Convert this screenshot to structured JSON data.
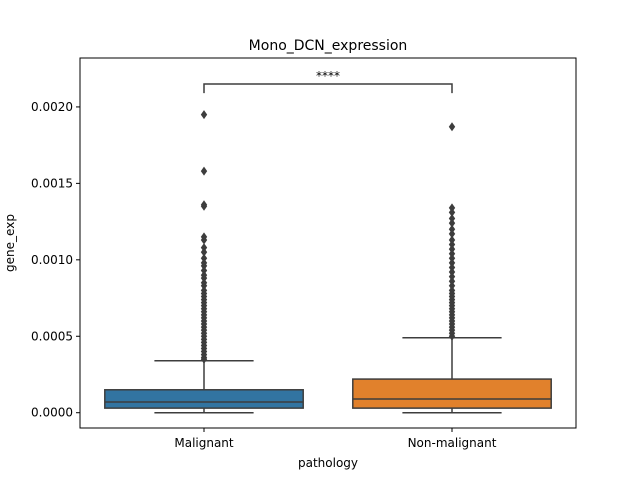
{
  "chart_data": {
    "type": "box",
    "title": "Mono_DCN_expression",
    "xlabel": "pathology",
    "ylabel": "gene_exp",
    "ylim": [
      -0.0001,
      0.00232
    ],
    "yticks": [
      0.0,
      0.0005,
      0.001,
      0.0015,
      0.002
    ],
    "ytick_labels": [
      "0.0000",
      "0.0005",
      "0.0010",
      "0.0015",
      "0.0020"
    ],
    "grid": false,
    "categories": [
      "Malignant",
      "Non-malignant"
    ],
    "boxes": [
      {
        "category": "Malignant",
        "color": "#3274a1",
        "whisker_low": 0.0,
        "q1": 3e-05,
        "median": 7e-05,
        "q3": 0.00015,
        "whisker_high": 0.00034,
        "outliers": [
          0.00195,
          0.00158,
          0.00136,
          0.00135,
          0.00115,
          0.00113,
          0.00108,
          0.00105,
          0.00101,
          0.00098,
          0.00096,
          0.00093,
          0.0009,
          0.00088,
          0.00085,
          0.00083,
          0.0008,
          0.00078,
          0.00076,
          0.00074,
          0.00072,
          0.0007,
          0.00068,
          0.00066,
          0.00064,
          0.00062,
          0.0006,
          0.00058,
          0.00056,
          0.00054,
          0.00052,
          0.0005,
          0.00048,
          0.00046,
          0.00044,
          0.00042,
          0.0004,
          0.00038,
          0.00036,
          0.00035
        ]
      },
      {
        "category": "Non-malignant",
        "color": "#e1812c",
        "whisker_low": 0.0,
        "q1": 3e-05,
        "median": 9e-05,
        "q3": 0.00022,
        "whisker_high": 0.00049,
        "outliers": [
          0.00187,
          0.00134,
          0.00131,
          0.00127,
          0.00124,
          0.0012,
          0.00117,
          0.00113,
          0.0011,
          0.00107,
          0.00104,
          0.00101,
          0.00098,
          0.00095,
          0.00092,
          0.00089,
          0.00086,
          0.00083,
          0.0008,
          0.00078,
          0.00076,
          0.00074,
          0.00072,
          0.0007,
          0.00068,
          0.00066,
          0.00064,
          0.00062,
          0.0006,
          0.00058,
          0.00056,
          0.00054,
          0.00052,
          0.0005
        ]
      }
    ],
    "annotation": {
      "text": "****",
      "y": 0.00215,
      "drop_to": 0.00209,
      "between": [
        "Malignant",
        "Non-malignant"
      ]
    }
  }
}
